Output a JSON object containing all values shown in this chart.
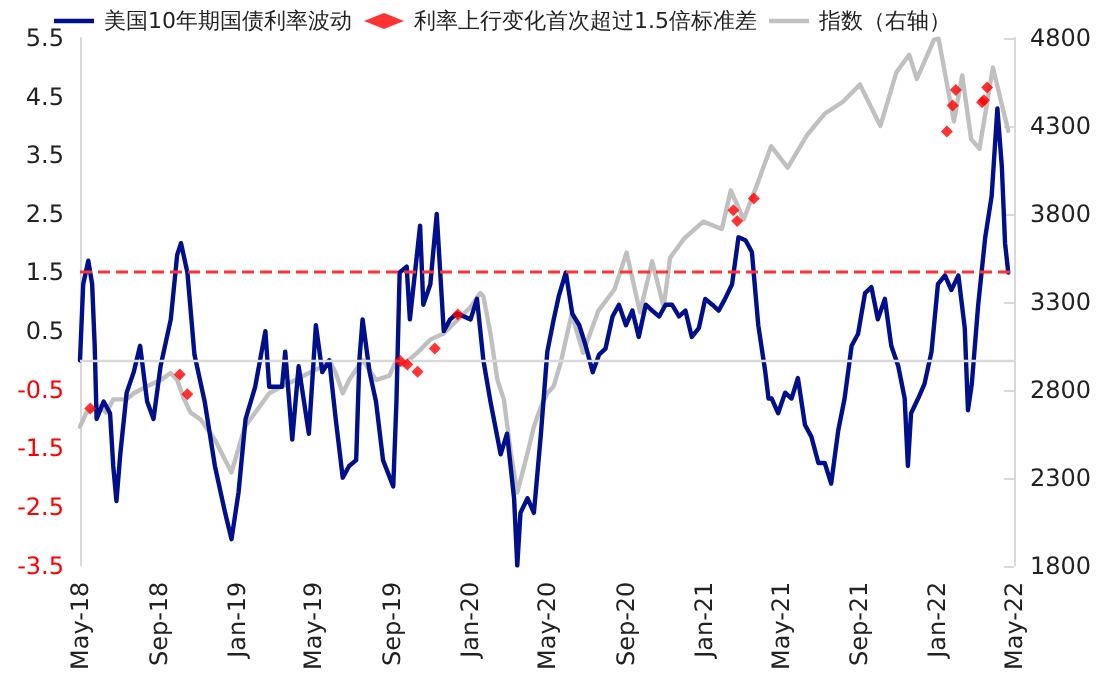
{
  "chart_data": {
    "type": "line",
    "legend": "top",
    "grid": false,
    "marker": "none",
    "line_style": "solid",
    "xlim": [
      "2018-05-01",
      "2022-05-01"
    ],
    "xticks": [
      {
        "value": "2018-05-01",
        "label": "May-18"
      },
      {
        "value": "2018-09-01",
        "label": "Sep-18"
      },
      {
        "value": "2019-01-01",
        "label": "Jan-19"
      },
      {
        "value": "2019-05-01",
        "label": "May-19"
      },
      {
        "value": "2019-09-01",
        "label": "Sep-19"
      },
      {
        "value": "2020-01-01",
        "label": "Jan-20"
      },
      {
        "value": "2020-05-01",
        "label": "May-20"
      },
      {
        "value": "2020-09-01",
        "label": "Sep-20"
      },
      {
        "value": "2021-01-01",
        "label": "Jan-21"
      },
      {
        "value": "2021-05-01",
        "label": "May-21"
      },
      {
        "value": "2021-09-01",
        "label": "Sep-21"
      },
      {
        "value": "2022-01-01",
        "label": "Jan-22"
      },
      {
        "value": "2022-05-01",
        "label": "May-22"
      }
    ],
    "ylim": [
      -3.5,
      5.5
    ],
    "yticks": [
      -3.5,
      -2.5,
      -1.5,
      -0.5,
      0.5,
      1.5,
      2.5,
      3.5,
      4.5,
      5.5
    ],
    "y2lim": [
      1800,
      4800
    ],
    "y2ticks": [
      1800,
      2300,
      2800,
      3300,
      3800,
      4300,
      4800
    ],
    "ref_lines": [
      {
        "axis": "y",
        "value": 0,
        "color": "#d9d9d9",
        "line_style": "solid"
      },
      {
        "axis": "y",
        "value": 1.5,
        "color": "#ff3333",
        "line_style": "dashed"
      }
    ],
    "series": [
      {
        "name": "美国10年期国债利率波动",
        "type": "line",
        "color": "#000f8c",
        "x": [
          "2018-05-01",
          "2018-05-06",
          "2018-05-14",
          "2018-05-20",
          "2018-05-24",
          "2018-05-27",
          "2018-06-07",
          "2018-06-17",
          "2018-06-22",
          "2018-06-27",
          "2018-07-03",
          "2018-07-13",
          "2018-07-24",
          "2018-08-03",
          "2018-08-14",
          "2018-08-24",
          "2018-09-04",
          "2018-09-20",
          "2018-09-30",
          "2018-10-06",
          "2018-10-16",
          "2018-10-27",
          "2018-11-12",
          "2018-11-28",
          "2018-12-14",
          "2018-12-24",
          "2019-01-04",
          "2019-01-15",
          "2019-01-30",
          "2019-02-15",
          "2019-02-21",
          "2019-03-13",
          "2019-03-18",
          "2019-03-29",
          "2019-04-08",
          "2019-04-24",
          "2019-05-05",
          "2019-05-15",
          "2019-05-26",
          "2019-06-05",
          "2019-06-16",
          "2019-06-26",
          "2019-07-07",
          "2019-07-12",
          "2019-07-17",
          "2019-07-28",
          "2019-08-07",
          "2019-08-18",
          "2019-09-03",
          "2019-09-08",
          "2019-09-13",
          "2019-09-24",
          "2019-09-29",
          "2019-10-15",
          "2019-10-20",
          "2019-10-31",
          "2019-11-10",
          "2019-11-21",
          "2019-12-01",
          "2019-12-12",
          "2020-01-02",
          "2020-01-12",
          "2020-01-22",
          "2020-02-02",
          "2020-02-18",
          "2020-02-28",
          "2020-03-10",
          "2020-03-15",
          "2020-03-20",
          "2020-03-31",
          "2020-04-10",
          "2020-04-21",
          "2020-05-01",
          "2020-05-11",
          "2020-05-19",
          "2020-05-30",
          "2020-06-09",
          "2020-06-20",
          "2020-06-30",
          "2020-07-11",
          "2020-07-21",
          "2020-07-31",
          "2020-08-11",
          "2020-08-21",
          "2020-09-01",
          "2020-09-11",
          "2020-09-21",
          "2020-10-02",
          "2020-10-12",
          "2020-10-23",
          "2020-11-02",
          "2020-11-12",
          "2020-11-23",
          "2020-12-03",
          "2020-12-13",
          "2020-12-24",
          "2021-01-03",
          "2021-01-14",
          "2021-01-24",
          "2021-02-03",
          "2021-02-14",
          "2021-02-24",
          "2021-03-07",
          "2021-03-17",
          "2021-03-27",
          "2021-04-07",
          "2021-04-12",
          "2021-04-17",
          "2021-04-27",
          "2021-05-08",
          "2021-05-18",
          "2021-05-28",
          "2021-06-08",
          "2021-06-18",
          "2021-06-29",
          "2021-07-09",
          "2021-07-19",
          "2021-07-30",
          "2021-08-09",
          "2021-08-20",
          "2021-08-30",
          "2021-09-10",
          "2021-09-20",
          "2021-09-30",
          "2021-10-11",
          "2021-10-21",
          "2021-11-01",
          "2021-11-11",
          "2021-11-16",
          "2021-11-21",
          "2021-12-02",
          "2021-12-12",
          "2021-12-23",
          "2022-01-02",
          "2022-01-13",
          "2022-01-23",
          "2022-02-03",
          "2022-02-13",
          "2022-02-18",
          "2022-02-24",
          "2022-03-06",
          "2022-03-17",
          "2022-03-27",
          "2022-04-05",
          "2022-04-12",
          "2022-04-17",
          "2022-04-22"
        ],
        "values": [
          0.0,
          1.3,
          1.7,
          1.3,
          0.25,
          -1.0,
          -0.7,
          -0.9,
          -1.8,
          -2.4,
          -1.6,
          -0.55,
          -0.2,
          0.25,
          -0.7,
          -1.0,
          -0.1,
          0.7,
          1.8,
          2.0,
          1.5,
          0.1,
          -0.7,
          -1.8,
          -2.6,
          -3.05,
          -2.25,
          -1.0,
          -0.45,
          0.5,
          -0.45,
          -0.45,
          0.15,
          -1.35,
          -0.1,
          -1.25,
          0.6,
          -0.2,
          0.0,
          -1.0,
          -2.0,
          -1.8,
          -1.7,
          0.0,
          0.7,
          -0.2,
          -0.7,
          -1.7,
          -2.15,
          -0.7,
          1.5,
          1.6,
          0.7,
          2.3,
          0.95,
          1.3,
          2.5,
          0.5,
          0.7,
          0.8,
          0.7,
          1.05,
          0.0,
          -0.7,
          -1.6,
          -1.25,
          -2.35,
          -3.5,
          -2.6,
          -2.35,
          -2.6,
          -1.25,
          0.15,
          0.7,
          1.1,
          1.5,
          0.8,
          0.6,
          0.25,
          -0.2,
          0.1,
          0.2,
          0.75,
          0.95,
          0.6,
          0.85,
          0.4,
          0.95,
          0.85,
          0.75,
          0.95,
          0.95,
          0.75,
          0.85,
          0.4,
          0.55,
          1.05,
          0.95,
          0.85,
          1.05,
          1.3,
          2.1,
          2.05,
          1.85,
          0.6,
          -0.2,
          -0.65,
          -0.65,
          -0.9,
          -0.55,
          -0.65,
          -0.3,
          -1.1,
          -1.3,
          -1.75,
          -1.75,
          -2.1,
          -1.2,
          -0.65,
          0.25,
          0.45,
          1.15,
          1.25,
          0.7,
          1.05,
          0.25,
          -0.1,
          -0.65,
          -1.8,
          -0.9,
          -0.65,
          -0.4,
          0.15,
          1.3,
          1.45,
          1.2,
          1.45,
          0.55,
          -0.85,
          -0.4,
          0.95,
          2.1,
          2.8,
          4.3,
          3.3,
          2.0,
          1.5
        ]
      },
      {
        "name": "利率上行变化首次超过1.5倍标准差",
        "type": "scatter",
        "marker": "diamond",
        "axis": "y2",
        "color": "#ff0000",
        "x": [
          "2018-05-17",
          "2018-10-04",
          "2018-10-16",
          "2019-09-14",
          "2019-09-25",
          "2019-10-11",
          "2019-11-07",
          "2019-12-13",
          "2021-02-16",
          "2021-02-22",
          "2021-03-20",
          "2022-01-16",
          "2022-01-25",
          "2022-01-30",
          "2022-03-12",
          "2022-03-15",
          "2022-03-20"
        ],
        "values": [
          2694,
          2887,
          2774,
          2963,
          2944,
          2902,
          3035,
          3228,
          3820,
          3760,
          3887,
          4268,
          4416,
          4504,
          4435,
          4446,
          4518
        ]
      },
      {
        "name": "指数（右轴）",
        "type": "line",
        "axis": "y2",
        "color": "#c0c0c0",
        "x": [
          "2018-05-01",
          "2018-05-11",
          "2018-06-01",
          "2018-06-11",
          "2018-06-22",
          "2018-07-13",
          "2018-07-24",
          "2018-08-14",
          "2018-09-04",
          "2018-09-20",
          "2018-09-30",
          "2018-10-11",
          "2018-10-21",
          "2018-11-06",
          "2018-11-28",
          "2018-12-19",
          "2018-12-24",
          "2019-01-14",
          "2019-01-30",
          "2019-02-21",
          "2019-03-13",
          "2019-04-03",
          "2019-04-24",
          "2019-05-15",
          "2019-05-26",
          "2019-06-05",
          "2019-06-16",
          "2019-06-26",
          "2019-07-17",
          "2019-08-07",
          "2019-08-28",
          "2019-09-08",
          "2019-09-18",
          "2019-10-09",
          "2019-10-31",
          "2019-11-21",
          "2019-12-12",
          "2020-01-02",
          "2020-01-17",
          "2020-01-22",
          "2020-02-02",
          "2020-02-13",
          "2020-02-23",
          "2020-03-05",
          "2020-03-15",
          "2020-03-31",
          "2020-04-10",
          "2020-04-21",
          "2020-05-01",
          "2020-05-11",
          "2020-05-22",
          "2020-06-08",
          "2020-06-26",
          "2020-07-20",
          "2020-08-14",
          "2020-09-02",
          "2020-09-23",
          "2020-10-12",
          "2020-10-30",
          "2020-11-09",
          "2020-12-01",
          "2020-12-31",
          "2021-01-29",
          "2021-02-12",
          "2021-03-04",
          "2021-03-26",
          "2021-04-16",
          "2021-05-12",
          "2021-06-11",
          "2021-07-09",
          "2021-08-06",
          "2021-09-02",
          "2021-10-04",
          "2021-10-29",
          "2021-11-18",
          "2021-11-30",
          "2021-12-27",
          "2022-01-03",
          "2022-01-27",
          "2022-02-09",
          "2022-02-23",
          "2022-03-08",
          "2022-03-29",
          "2022-04-14",
          "2022-04-22"
        ],
        "values": [
          2590,
          2670,
          2705,
          2670,
          2745,
          2745,
          2780,
          2820,
          2855,
          2895,
          2855,
          2745,
          2670,
          2630,
          2515,
          2365,
          2330,
          2590,
          2670,
          2780,
          2820,
          2855,
          2895,
          2930,
          2970,
          2895,
          2780,
          2855,
          2970,
          2855,
          2880,
          2970,
          2940,
          3005,
          3085,
          3120,
          3195,
          3270,
          3350,
          3330,
          3120,
          2855,
          2745,
          2440,
          2215,
          2440,
          2590,
          2705,
          2780,
          2820,
          2955,
          3230,
          3010,
          3250,
          3370,
          3580,
          3240,
          3530,
          3270,
          3550,
          3660,
          3756,
          3714,
          3934,
          3768,
          3975,
          4185,
          4063,
          4247,
          4370,
          4436,
          4536,
          4300,
          4605,
          4705,
          4567,
          4791,
          4796,
          4326,
          4587,
          4225,
          4170,
          4632,
          4392,
          4272
        ]
      }
    ]
  }
}
